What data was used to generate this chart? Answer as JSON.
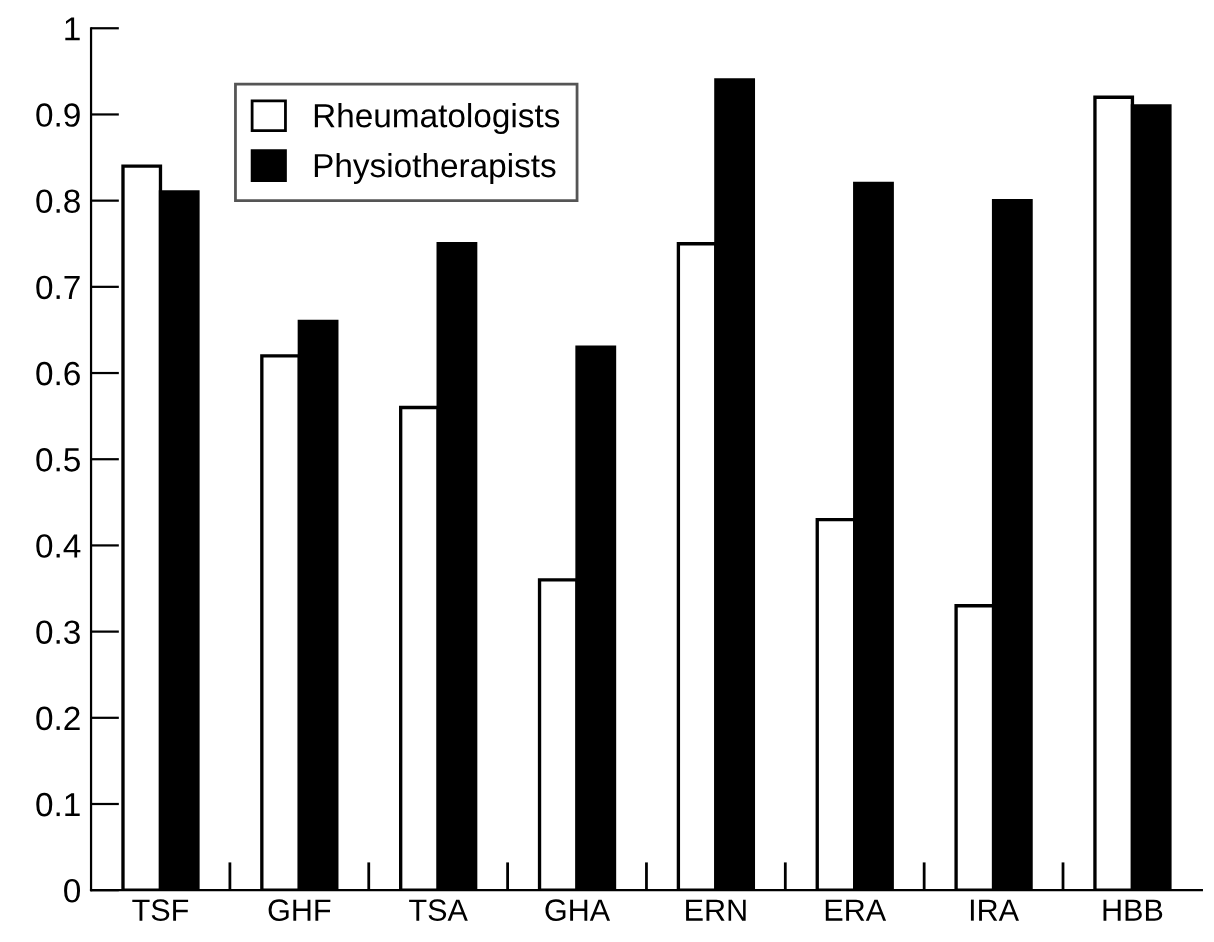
{
  "chart_data": {
    "type": "bar",
    "categories": [
      "TSF",
      "GHF",
      "TSA",
      "GHA",
      "ERN",
      "ERA",
      "IRA",
      "HBB"
    ],
    "series": [
      {
        "name": "Rheumatologists",
        "color": "#ffffff",
        "values": [
          0.84,
          0.62,
          0.56,
          0.36,
          0.75,
          0.43,
          0.33,
          0.92
        ]
      },
      {
        "name": "Physiotherapists",
        "color": "#000000",
        "values": [
          0.81,
          0.66,
          0.75,
          0.63,
          0.94,
          0.82,
          0.8,
          0.91
        ]
      }
    ],
    "ylim": [
      0,
      1
    ],
    "yticks": [
      0,
      0.1,
      0.2,
      0.3,
      0.4,
      0.5,
      0.6,
      0.7,
      0.8,
      0.9,
      1
    ],
    "grid": false,
    "legend": "top left"
  }
}
